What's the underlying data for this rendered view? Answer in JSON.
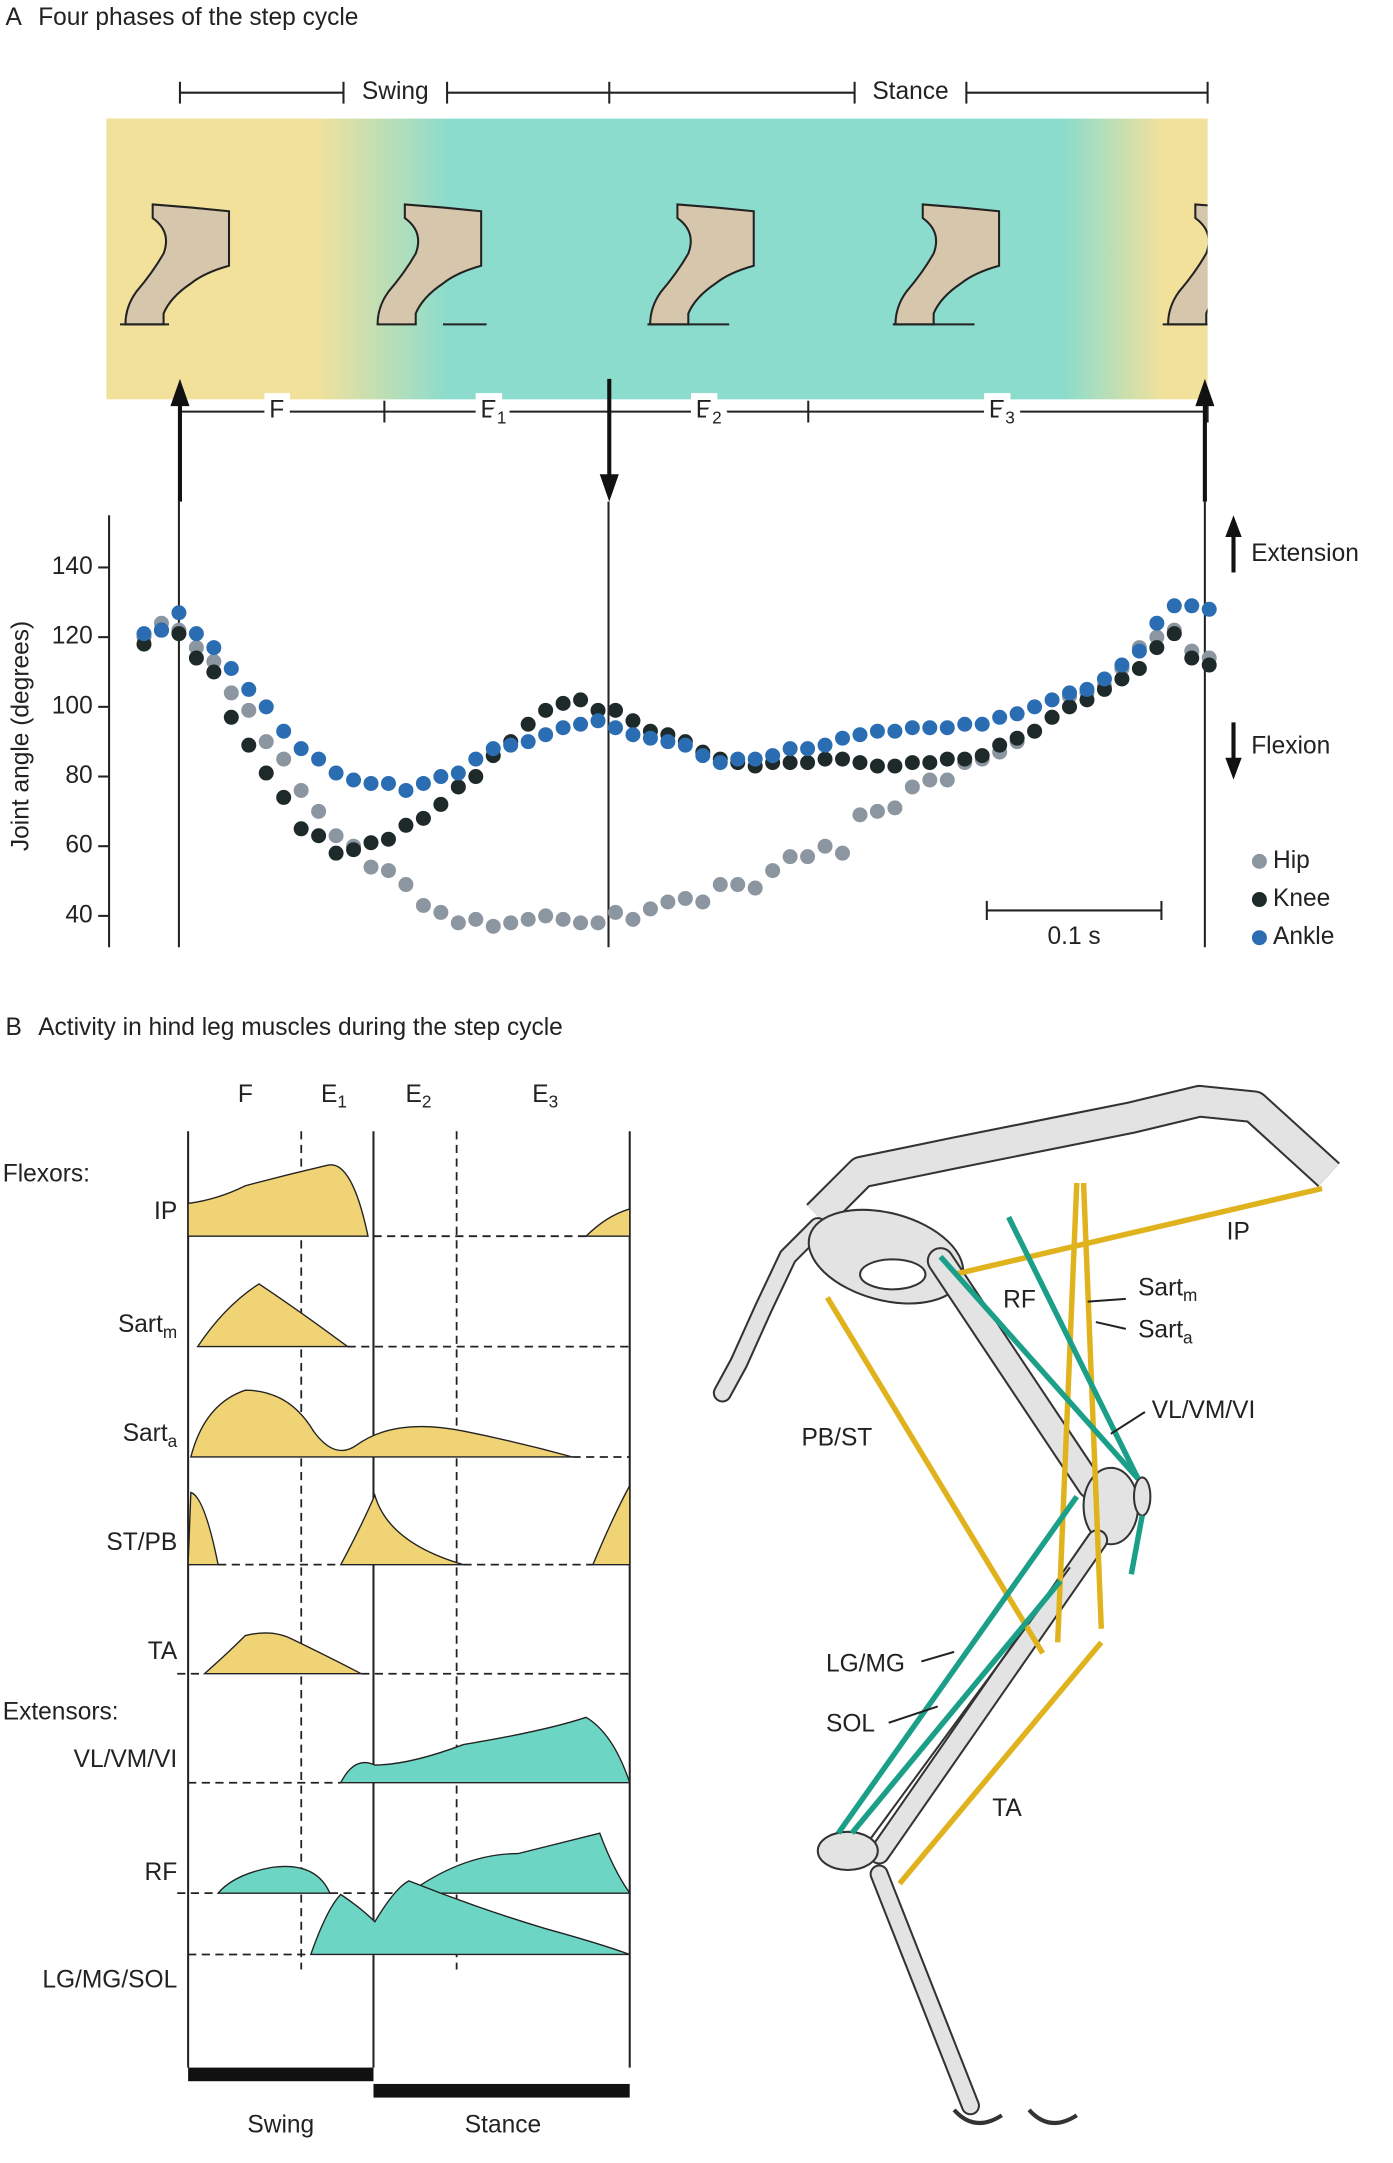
{
  "panel_a": {
    "letter": "A",
    "title": "Four phases of the step cycle",
    "phases": [
      "Swing",
      "Stance"
    ],
    "subphases": [
      {
        "name": "F"
      },
      {
        "name": "E",
        "sub": "1"
      },
      {
        "name": "E",
        "sub": "2"
      },
      {
        "name": "E",
        "sub": "3"
      }
    ]
  },
  "chart_data": {
    "type": "scatter",
    "y_label": "Joint angle (degrees)",
    "x": [
      -0.02,
      -0.01,
      0,
      0.01,
      0.02,
      0.03,
      0.04,
      0.05,
      0.06,
      0.07,
      0.08,
      0.09,
      0.1,
      0.11,
      0.12,
      0.13,
      0.14,
      0.15,
      0.16,
      0.17,
      0.18,
      0.19,
      0.2,
      0.21,
      0.22,
      0.23,
      0.24,
      0.25,
      0.26,
      0.27,
      0.28,
      0.29,
      0.3,
      0.31,
      0.32,
      0.33,
      0.34,
      0.35,
      0.36,
      0.37,
      0.38,
      0.39,
      0.4,
      0.41,
      0.42,
      0.43,
      0.44,
      0.45,
      0.46,
      0.47,
      0.48,
      0.49,
      0.5,
      0.51,
      0.52,
      0.53,
      0.54,
      0.55,
      0.56,
      0.57,
      0.58,
      0.59
    ],
    "series": [
      {
        "name": "Hip",
        "color": "#8c96a1",
        "values": [
          120,
          124,
          122,
          117,
          113,
          104,
          99,
          90,
          85,
          76,
          70,
          63,
          60,
          54,
          53,
          49,
          43,
          41,
          38,
          39,
          37,
          38,
          39,
          40,
          39,
          38,
          38,
          41,
          39,
          42,
          44,
          45,
          44,
          49,
          49,
          48,
          53,
          57,
          57,
          60,
          58,
          69,
          70,
          71,
          77,
          79,
          79,
          84,
          85,
          87,
          90,
          93,
          97,
          103,
          104,
          106,
          111,
          117,
          120,
          122,
          116,
          114
        ]
      },
      {
        "name": "Knee",
        "color": "#1e2a2a",
        "values": [
          118,
          122,
          121,
          114,
          110,
          97,
          89,
          81,
          74,
          65,
          63,
          58,
          59,
          61,
          62,
          66,
          68,
          72,
          77,
          80,
          86,
          90,
          95,
          99,
          101,
          102,
          99,
          99,
          96,
          93,
          92,
          90,
          87,
          85,
          84,
          83,
          84,
          84,
          84,
          85,
          85,
          84,
          83,
          83,
          84,
          84,
          85,
          85,
          86,
          89,
          91,
          93,
          97,
          100,
          102,
          105,
          108,
          111,
          117,
          121,
          114,
          112
        ]
      },
      {
        "name": "Ankle",
        "color": "#2b6db3",
        "values": [
          121,
          122,
          127,
          121,
          117,
          111,
          105,
          100,
          93,
          88,
          85,
          81,
          79,
          78,
          78,
          76,
          78,
          80,
          81,
          85,
          88,
          89,
          90,
          92,
          94,
          95,
          96,
          94,
          92,
          91,
          90,
          89,
          86,
          84,
          85,
          85,
          86,
          88,
          88,
          89,
          91,
          92,
          93,
          93,
          94,
          94,
          94,
          95,
          95,
          97,
          98,
          100,
          102,
          104,
          105,
          108,
          112,
          116,
          124,
          129,
          129,
          128
        ]
      }
    ],
    "xlim": [
      -0.04,
      0.6
    ],
    "ylim": [
      31,
      155
    ],
    "yticks": [
      40,
      60,
      80,
      100,
      120,
      140
    ],
    "vlines": [
      0,
      0.246,
      0.5875
    ],
    "annotations": [
      "Extension",
      "Flexion"
    ],
    "scale_bar": {
      "label": "0.1 s",
      "length": 0.1
    },
    "legend": "right"
  },
  "panel_b": {
    "letter": "B",
    "title": "Activity in hind leg muscles during the step cycle",
    "columns": [
      {
        "name": "F"
      },
      {
        "name": "E",
        "sub": "1"
      },
      {
        "name": "E",
        "sub": "2"
      },
      {
        "name": "E",
        "sub": "3"
      }
    ],
    "flexors_label": "Flexors:",
    "extensors_label": "Extensors:",
    "muscles": [
      {
        "name": "IP"
      },
      {
        "name": "Sart",
        "sub": "m"
      },
      {
        "name": "Sart",
        "sub": "a"
      },
      {
        "name": "ST/PB"
      },
      {
        "name": "TA"
      },
      {
        "name": "VL/VM/VI"
      },
      {
        "name": "RF"
      },
      {
        "name": "LG/MG/SOL"
      }
    ],
    "phases": [
      "Swing",
      "Stance"
    ],
    "anatomy_labels": [
      {
        "name": "IP"
      },
      {
        "name": "RF"
      },
      {
        "name": "Sart",
        "sub": "m"
      },
      {
        "name": "Sart",
        "sub": "a"
      },
      {
        "name": "VL/VM/VI"
      },
      {
        "name": "PB/ST"
      },
      {
        "name": "LG/MG"
      },
      {
        "name": "SOL"
      },
      {
        "name": "TA"
      }
    ]
  }
}
